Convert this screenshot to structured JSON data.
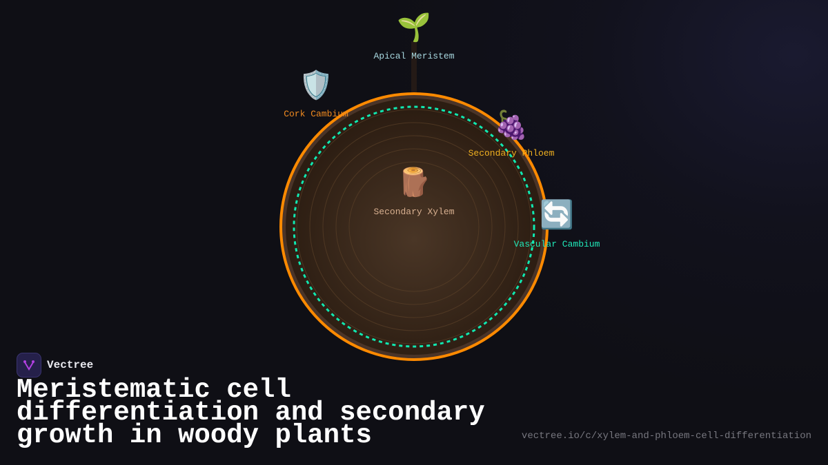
{
  "brand": {
    "name": "Vectree"
  },
  "title": "Meristematic cell differentiation and secondary growth in woody plants",
  "url": "vectree.io/c/xylem-and-phloem-cell-differentiation",
  "nodes": [
    {
      "id": "apical",
      "label": "Apical Meristem",
      "icon": "seedling-icon",
      "emoji": "🌱",
      "color": "#a8d8e0"
    },
    {
      "id": "cork",
      "label": "Cork Cambium",
      "icon": "shield-icon",
      "emoji": "🛡️",
      "color": "#f08a20"
    },
    {
      "id": "phloem",
      "label": "Secondary Phloem",
      "icon": "grapes-icon",
      "emoji": "🍇",
      "color": "#f0b020"
    },
    {
      "id": "xylem",
      "label": "Secondary Xylem",
      "icon": "wood-log-icon",
      "emoji": "🪵",
      "color": "#d8b090"
    },
    {
      "id": "vascular",
      "label": "Vascular Cambium",
      "icon": "cycle-arrows-icon",
      "emoji": "🔄",
      "color": "#20e8b8"
    }
  ],
  "colors": {
    "bark": "#ff8a00",
    "cambium": "#10e8b0",
    "wood": "#3a2818"
  }
}
